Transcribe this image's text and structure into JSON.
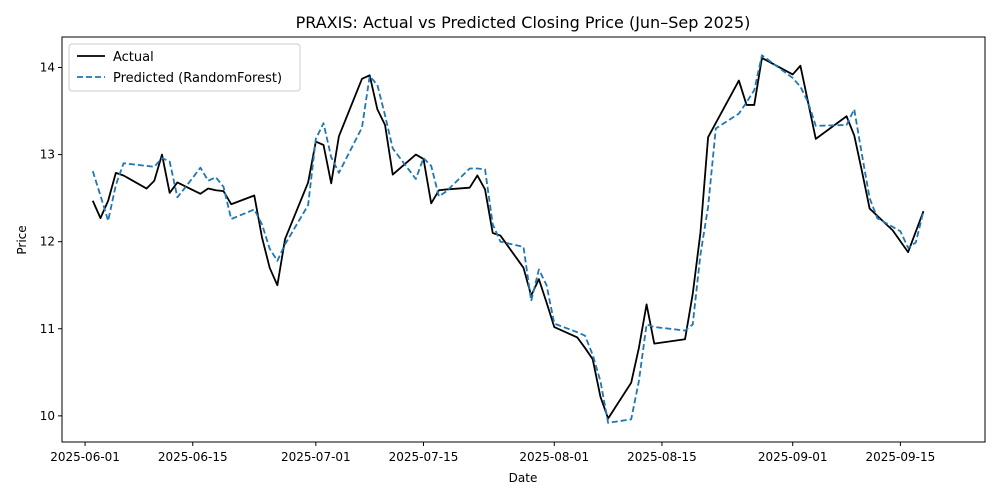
{
  "chart_data": {
    "type": "line",
    "title": "PRAXIS: Actual vs Predicted Closing Price (Jun–Sep 2025)",
    "xlabel": "Date",
    "ylabel": "Price",
    "xlim": [
      "2025-05-29",
      "2025-09-26"
    ],
    "ylim": [
      9.7,
      14.35
    ],
    "x_ticks": [
      "2025-06-01",
      "2025-06-15",
      "2025-07-01",
      "2025-07-15",
      "2025-08-01",
      "2025-08-15",
      "2025-09-01",
      "2025-09-15"
    ],
    "y_ticks": [
      10,
      11,
      12,
      13,
      14
    ],
    "grid": false,
    "legend_position": "top-left",
    "series": [
      {
        "name": "Actual",
        "color": "#000000",
        "style": "solid",
        "points": [
          [
            "2025-06-02",
            12.47
          ],
          [
            "2025-06-03",
            12.27
          ],
          [
            "2025-06-04",
            12.47
          ],
          [
            "2025-06-05",
            12.79
          ],
          [
            "2025-06-06",
            12.76
          ],
          [
            "2025-06-09",
            12.61
          ],
          [
            "2025-06-10",
            12.7
          ],
          [
            "2025-06-11",
            13.0
          ],
          [
            "2025-06-12",
            12.56
          ],
          [
            "2025-06-13",
            12.68
          ],
          [
            "2025-06-16",
            12.55
          ],
          [
            "2025-06-17",
            12.61
          ],
          [
            "2025-06-18",
            12.59
          ],
          [
            "2025-06-19",
            12.58
          ],
          [
            "2025-06-20",
            12.43
          ],
          [
            "2025-06-23",
            12.53
          ],
          [
            "2025-06-24",
            12.05
          ],
          [
            "2025-06-25",
            11.7
          ],
          [
            "2025-06-26",
            11.5
          ],
          [
            "2025-06-27",
            12.03
          ],
          [
            "2025-06-30",
            12.68
          ],
          [
            "2025-07-01",
            13.15
          ],
          [
            "2025-07-02",
            13.11
          ],
          [
            "2025-07-03",
            12.67
          ],
          [
            "2025-07-04",
            13.21
          ],
          [
            "2025-07-07",
            13.87
          ],
          [
            "2025-07-08",
            13.91
          ],
          [
            "2025-07-09",
            13.52
          ],
          [
            "2025-07-10",
            13.34
          ],
          [
            "2025-07-11",
            12.77
          ],
          [
            "2025-07-14",
            13.0
          ],
          [
            "2025-07-15",
            12.95
          ],
          [
            "2025-07-16",
            12.44
          ],
          [
            "2025-07-17",
            12.59
          ],
          [
            "2025-07-18",
            12.6
          ],
          [
            "2025-07-21",
            12.62
          ],
          [
            "2025-07-22",
            12.76
          ],
          [
            "2025-07-23",
            12.6
          ],
          [
            "2025-07-24",
            12.1
          ],
          [
            "2025-07-25",
            12.07
          ],
          [
            "2025-07-28",
            11.7
          ],
          [
            "2025-07-29",
            11.38
          ],
          [
            "2025-07-30",
            11.57
          ],
          [
            "2025-07-31",
            11.3
          ],
          [
            "2025-08-01",
            11.02
          ],
          [
            "2025-08-04",
            10.9
          ],
          [
            "2025-08-05",
            10.78
          ],
          [
            "2025-08-06",
            10.65
          ],
          [
            "2025-08-07",
            10.22
          ],
          [
            "2025-08-08",
            9.97
          ],
          [
            "2025-08-11",
            10.38
          ],
          [
            "2025-08-12",
            10.78
          ],
          [
            "2025-08-13",
            11.28
          ],
          [
            "2025-08-14",
            10.83
          ],
          [
            "2025-08-18",
            10.88
          ],
          [
            "2025-08-19",
            11.4
          ],
          [
            "2025-08-20",
            12.1
          ],
          [
            "2025-08-21",
            13.2
          ],
          [
            "2025-08-25",
            13.85
          ],
          [
            "2025-08-26",
            13.57
          ],
          [
            "2025-08-27",
            13.57
          ],
          [
            "2025-08-28",
            14.11
          ],
          [
            "2025-09-01",
            13.92
          ],
          [
            "2025-09-02",
            14.02
          ],
          [
            "2025-09-03",
            13.6
          ],
          [
            "2025-09-04",
            13.18
          ],
          [
            "2025-09-08",
            13.44
          ],
          [
            "2025-09-09",
            13.22
          ],
          [
            "2025-09-10",
            12.81
          ],
          [
            "2025-09-11",
            12.38
          ],
          [
            "2025-09-14",
            12.13
          ],
          [
            "2025-09-16",
            11.88
          ],
          [
            "2025-09-18",
            12.35
          ]
        ]
      },
      {
        "name": "Predicted (RandomForest)",
        "color": "#1f77b4",
        "style": "dashed",
        "points": [
          [
            "2025-06-02",
            12.81
          ],
          [
            "2025-06-03",
            12.53
          ],
          [
            "2025-06-04",
            12.24
          ],
          [
            "2025-06-05",
            12.65
          ],
          [
            "2025-06-06",
            12.9
          ],
          [
            "2025-06-10",
            12.86
          ],
          [
            "2025-06-11",
            12.96
          ],
          [
            "2025-06-12",
            12.92
          ],
          [
            "2025-06-13",
            12.51
          ],
          [
            "2025-06-14",
            12.62
          ],
          [
            "2025-06-16",
            12.85
          ],
          [
            "2025-06-17",
            12.7
          ],
          [
            "2025-06-18",
            12.74
          ],
          [
            "2025-06-19",
            12.63
          ],
          [
            "2025-06-20",
            12.26
          ],
          [
            "2025-06-23",
            12.37
          ],
          [
            "2025-06-24",
            12.2
          ],
          [
            "2025-06-25",
            11.92
          ],
          [
            "2025-06-26",
            11.78
          ],
          [
            "2025-06-27",
            11.97
          ],
          [
            "2025-06-30",
            12.42
          ],
          [
            "2025-07-01",
            13.18
          ],
          [
            "2025-07-02",
            13.36
          ],
          [
            "2025-07-03",
            12.97
          ],
          [
            "2025-07-04",
            12.79
          ],
          [
            "2025-07-07",
            13.31
          ],
          [
            "2025-07-08",
            13.9
          ],
          [
            "2025-07-09",
            13.8
          ],
          [
            "2025-07-10",
            13.45
          ],
          [
            "2025-07-11",
            13.07
          ],
          [
            "2025-07-14",
            12.72
          ],
          [
            "2025-07-15",
            12.96
          ],
          [
            "2025-07-16",
            12.87
          ],
          [
            "2025-07-17",
            12.52
          ],
          [
            "2025-07-18",
            12.58
          ],
          [
            "2025-07-21",
            12.84
          ],
          [
            "2025-07-22",
            12.84
          ],
          [
            "2025-07-23",
            12.83
          ],
          [
            "2025-07-24",
            12.2
          ],
          [
            "2025-07-25",
            12.0
          ],
          [
            "2025-07-28",
            11.94
          ],
          [
            "2025-07-29",
            11.32
          ],
          [
            "2025-07-30",
            11.68
          ],
          [
            "2025-07-31",
            11.5
          ],
          [
            "2025-08-01",
            11.06
          ],
          [
            "2025-08-04",
            10.96
          ],
          [
            "2025-08-05",
            10.92
          ],
          [
            "2025-08-06",
            10.7
          ],
          [
            "2025-08-07",
            10.4
          ],
          [
            "2025-08-08",
            9.92
          ],
          [
            "2025-08-11",
            9.96
          ],
          [
            "2025-08-12",
            10.4
          ],
          [
            "2025-08-13",
            11.05
          ],
          [
            "2025-08-14",
            11.02
          ],
          [
            "2025-08-18",
            10.98
          ],
          [
            "2025-08-19",
            11.05
          ],
          [
            "2025-08-20",
            11.85
          ],
          [
            "2025-08-21",
            12.4
          ],
          [
            "2025-08-22",
            13.3
          ],
          [
            "2025-08-25",
            13.47
          ],
          [
            "2025-08-26",
            13.6
          ],
          [
            "2025-08-27",
            13.74
          ],
          [
            "2025-08-28",
            14.14
          ],
          [
            "2025-09-01",
            13.88
          ],
          [
            "2025-09-02",
            13.78
          ],
          [
            "2025-09-03",
            13.6
          ],
          [
            "2025-09-04",
            13.33
          ],
          [
            "2025-09-08",
            13.34
          ],
          [
            "2025-09-09",
            13.52
          ],
          [
            "2025-09-10",
            13.0
          ],
          [
            "2025-09-11",
            12.5
          ],
          [
            "2025-09-12",
            12.27
          ],
          [
            "2025-09-15",
            12.12
          ],
          [
            "2025-09-16",
            11.93
          ],
          [
            "2025-09-17",
            11.99
          ],
          [
            "2025-09-18",
            12.35
          ]
        ]
      }
    ]
  }
}
